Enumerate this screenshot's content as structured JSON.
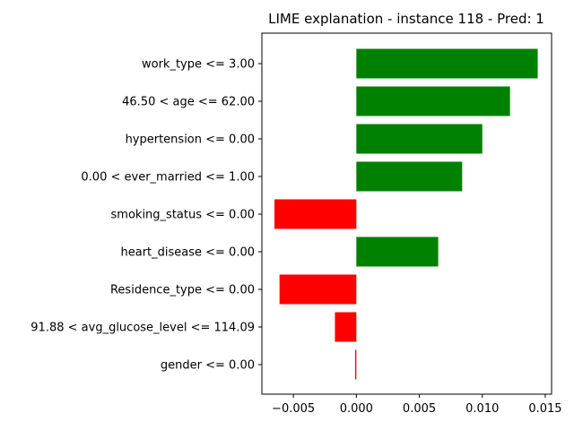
{
  "chart_data": {
    "type": "bar",
    "orientation": "horizontal",
    "title": "LIME explanation - instance 118 - Pred: 1",
    "xlabel": "",
    "ylabel": "",
    "categories": [
      "work_type <= 3.00",
      "46.50 < age <= 62.00",
      "hypertension <= 0.00",
      "0.00 < ever_married <= 1.00",
      "smoking_status <= 0.00",
      "heart_disease <= 0.00",
      "Residence_type <= 0.00",
      "91.88 < avg_glucose_level <= 114.09",
      "gender <= 0.00"
    ],
    "values": [
      0.0144,
      0.0122,
      0.01,
      0.0084,
      -0.0065,
      0.0065,
      -0.0061,
      -0.0017,
      -0.0001
    ],
    "xlim": [
      -0.0075,
      0.0155
    ],
    "x_ticks": [
      -0.005,
      0.0,
      0.005,
      0.01,
      0.015
    ],
    "x_tick_labels": [
      "−0.005",
      "0.000",
      "0.005",
      "0.010",
      "0.015"
    ],
    "grid": false,
    "legend": "none",
    "colors": {
      "positive": "#008000",
      "negative": "#ff0000",
      "axis": "#000000"
    }
  }
}
